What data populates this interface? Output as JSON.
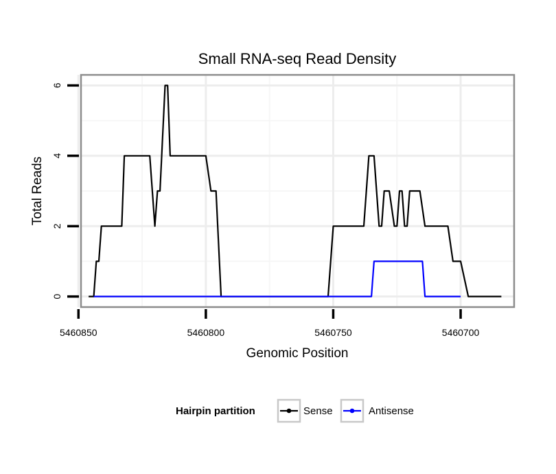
{
  "chart_data": {
    "type": "line",
    "title": "Small RNA-seq Read Density",
    "xlabel": "Genomic Position",
    "ylabel": "Total Reads",
    "xlim": [
      5460849,
      5460679
    ],
    "ylim": [
      -0.3,
      6.3
    ],
    "x_reversed": true,
    "grid": true,
    "x_ticks": [
      5460850,
      5460800,
      5460750,
      5460700
    ],
    "x_tick_labels": [
      "5460850",
      "5460800",
      "5460750",
      "5460700"
    ],
    "y_ticks": [
      0,
      2,
      4,
      6
    ],
    "y_tick_labels": [
      "0",
      "2",
      "4",
      "6"
    ],
    "legend": {
      "title": "Hairpin partition",
      "position": "bottom",
      "entries": [
        "Sense",
        "Antisense"
      ]
    },
    "series": [
      {
        "name": "Sense",
        "color": "#000000",
        "x": [
          5460846,
          5460844,
          5460843,
          5460842,
          5460841,
          5460840,
          5460833,
          5460832,
          5460822,
          5460820,
          5460819,
          5460818,
          5460816,
          5460815,
          5460814,
          5460812,
          5460800,
          5460798,
          5460796,
          5460794,
          5460752,
          5460750,
          5460738,
          5460736,
          5460734,
          5460733,
          5460732,
          5460731,
          5460730,
          5460728,
          5460726,
          5460725,
          5460724,
          5460723,
          5460722,
          5460721,
          5460720,
          5460716,
          5460714,
          5460705,
          5460703,
          5460700,
          5460697,
          5460696,
          5460695,
          5460694,
          5460684
        ],
        "y": [
          0,
          0,
          1,
          1,
          2,
          2,
          2,
          4,
          4,
          2,
          3,
          3,
          6,
          6,
          4,
          4,
          4,
          3,
          3,
          0,
          0,
          2,
          2,
          4,
          4,
          3,
          2,
          2,
          3,
          3,
          2,
          2,
          3,
          3,
          2,
          2,
          3,
          3,
          2,
          2,
          1,
          1,
          0,
          0,
          0,
          0,
          0
        ]
      },
      {
        "name": "Antisense",
        "color": "#0000ff",
        "x": [
          5460844,
          5460735,
          5460734,
          5460715,
          5460714,
          5460700
        ],
        "y": [
          0,
          0,
          1,
          1,
          0,
          0
        ]
      }
    ]
  }
}
